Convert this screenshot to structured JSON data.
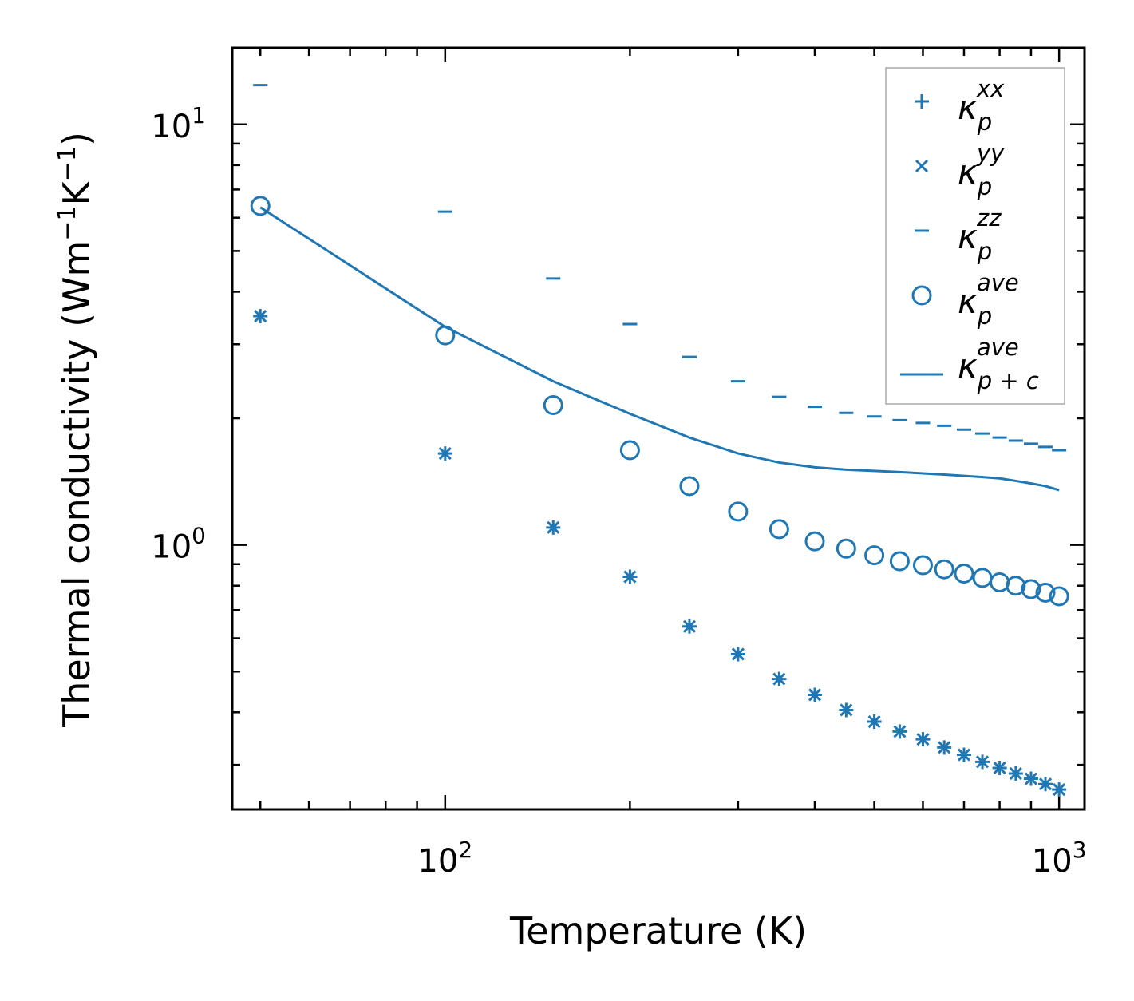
{
  "colors": {
    "series": "#1f77b4",
    "axis": "#000000",
    "legend_border": "#aaaaaa"
  },
  "chart_data": {
    "type": "scatter",
    "xscale": "log",
    "yscale": "log",
    "xlim": [
      45,
      1100
    ],
    "ylim": [
      0.235,
      15.2
    ],
    "xlabel": "Temperature (K)",
    "ylabel": {
      "base": "Thermal conductivity (Wm",
      "exp1": "−1",
      "mid": "K",
      "exp2": "−1",
      "end": ")"
    },
    "x_major_ticks": [
      {
        "value": 100,
        "base": "10",
        "exp": "2"
      },
      {
        "value": 1000,
        "base": "10",
        "exp": "3"
      }
    ],
    "y_major_ticks": [
      {
        "value": 1,
        "base": "10",
        "exp": "0"
      },
      {
        "value": 10,
        "base": "10",
        "exp": "1"
      }
    ],
    "x": [
      50,
      100,
      150,
      200,
      250,
      300,
      350,
      400,
      450,
      500,
      550,
      600,
      650,
      700,
      750,
      800,
      850,
      900,
      950,
      1000
    ],
    "series": [
      {
        "name": "kappa_p_xx",
        "legend_base": "κ",
        "legend_sub": "p",
        "legend_sup": "xx",
        "marker": "plus",
        "values": [
          3.5,
          1.65,
          1.1,
          0.84,
          0.64,
          0.55,
          0.48,
          0.44,
          0.405,
          0.38,
          0.36,
          0.345,
          0.33,
          0.317,
          0.305,
          0.295,
          0.286,
          0.278,
          0.27,
          0.262
        ]
      },
      {
        "name": "kappa_p_yy",
        "legend_base": "κ",
        "legend_sub": "p",
        "legend_sup": "yy",
        "marker": "x",
        "values": [
          3.5,
          1.65,
          1.1,
          0.84,
          0.64,
          0.55,
          0.48,
          0.44,
          0.405,
          0.38,
          0.36,
          0.345,
          0.33,
          0.317,
          0.305,
          0.295,
          0.286,
          0.278,
          0.27,
          0.262
        ]
      },
      {
        "name": "kappa_p_zz",
        "legend_base": "κ",
        "legend_sub": "p",
        "legend_sup": "zz",
        "marker": "hline",
        "values": [
          12.4,
          6.2,
          4.3,
          3.35,
          2.8,
          2.45,
          2.25,
          2.13,
          2.06,
          2.02,
          1.98,
          1.95,
          1.92,
          1.88,
          1.84,
          1.8,
          1.77,
          1.74,
          1.71,
          1.68
        ]
      },
      {
        "name": "kappa_p_ave",
        "legend_base": "κ",
        "legend_sub": "p",
        "legend_sup": "ave",
        "marker": "circle",
        "values": [
          6.4,
          3.15,
          2.15,
          1.68,
          1.38,
          1.2,
          1.09,
          1.02,
          0.98,
          0.945,
          0.915,
          0.895,
          0.875,
          0.855,
          0.835,
          0.815,
          0.8,
          0.785,
          0.77,
          0.755
        ]
      },
      {
        "name": "kappa_pc_ave",
        "legend_base": "κ",
        "legend_sub": "p + c",
        "legend_sup": "ave",
        "marker": "line",
        "values": [
          6.35,
          3.3,
          2.45,
          2.05,
          1.8,
          1.65,
          1.57,
          1.53,
          1.51,
          1.5,
          1.49,
          1.48,
          1.47,
          1.46,
          1.45,
          1.44,
          1.42,
          1.4,
          1.38,
          1.35
        ]
      }
    ],
    "legend_position": "upper right"
  }
}
